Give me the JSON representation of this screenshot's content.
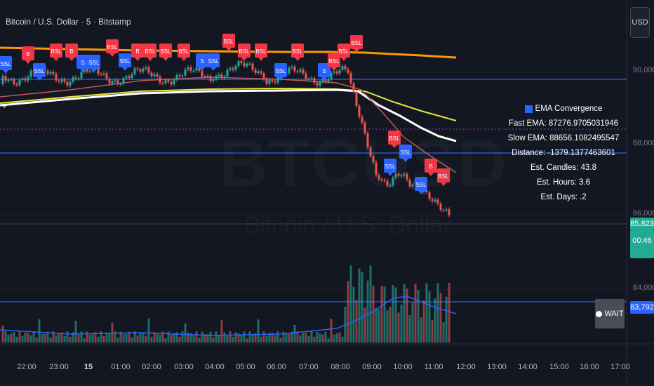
{
  "header": {
    "title": "Bitcoin / U.S. Dollar · 5 · Bitstamp",
    "currency": "USD"
  },
  "watermark": {
    "symbol": "BTCUSD",
    "name": "Bitcoin / U.S. Dollar"
  },
  "info_box": {
    "icon": "ema-chart-icon",
    "title": "EMA Convergence",
    "lines": [
      "Fast EMA: 87276.9705031946",
      "Slow EMA: 88656.1082495547",
      "Distance: -1379.1377463601",
      "Est. Candles: 43.8",
      "Est. Hours: 3.6",
      "Est. Days: .2"
    ]
  },
  "price_axis": {
    "labels": [
      "90,000",
      "88,000",
      "86,000",
      "84,000"
    ]
  },
  "tags": {
    "last_price": "85,823",
    "countdown": "00:46",
    "line_price": "83,792"
  },
  "signal": {
    "label": "WAIT"
  },
  "time_axis": {
    "labels": [
      "22:00",
      "23:00",
      "15",
      "01:00",
      "02:00",
      "03:00",
      "04:00",
      "05:00",
      "06:00",
      "07:00",
      "08:00",
      "09:00",
      "10:00",
      "11:00",
      "12:00",
      "13:00",
      "14:00",
      "15:00",
      "16:00",
      "17:00"
    ]
  },
  "markers": {
    "bsl": "BSL",
    "ssl": "SSL",
    "bsl_short": "B",
    "ssl_short": "S"
  },
  "colors": {
    "background": "#131722",
    "up": "#26a69a",
    "down": "#ef5350",
    "bsl_marker": "#f23645",
    "ssl_marker": "#2962ff",
    "orange_ema": "#ff9800",
    "yellow_ema": "#e8e33a",
    "white_ema": "#ffffff",
    "blue_level": "#2962ff",
    "last_price_tag": "#22ab94"
  }
}
